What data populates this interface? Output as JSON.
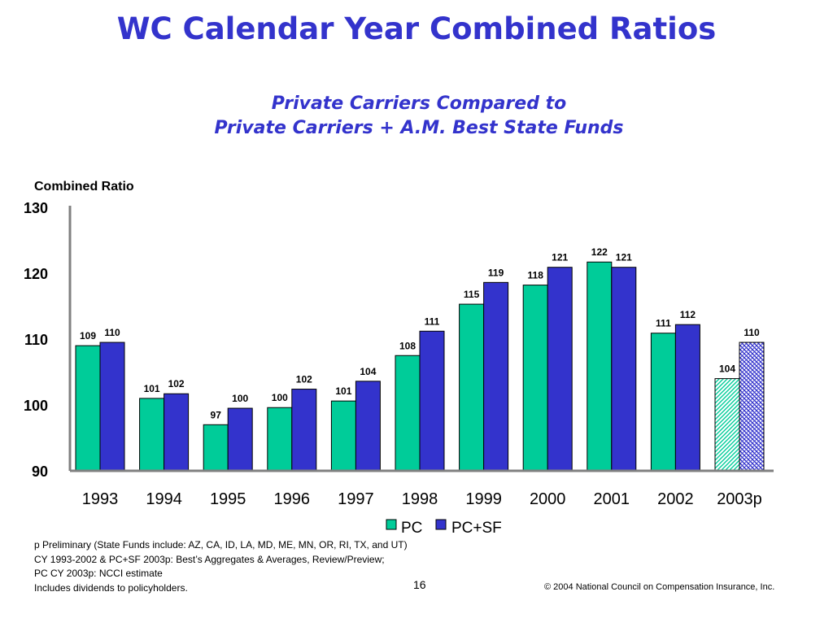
{
  "slide": {
    "title": "WC Calendar Year Combined Ratios",
    "subtitle_line1": "Private Carriers Compared to",
    "subtitle_line2": "Private Carriers + A.M. Best State Funds",
    "footnotes": [
      "p Preliminary (State Funds include: AZ, CA, ID, LA, MD, ME, MN, OR, RI, TX, and UT)",
      "CY 1993-2002 & PC+SF 2003p: Best’s Aggregates & Averages, Review/Preview;",
      "PC CY 2003p: NCCI estimate",
      "Includes dividends to policyholders."
    ],
    "page_number": "16",
    "copyright": "© 2004 National Council on Compensation Insurance, Inc."
  },
  "chart_data": {
    "type": "bar",
    "ylabel": "Combined Ratio",
    "ylim": [
      90,
      130
    ],
    "yticks": [
      90,
      100,
      110,
      120,
      130
    ],
    "categories": [
      "1993",
      "1994",
      "1995",
      "1996",
      "1997",
      "1998",
      "1999",
      "2000",
      "2001",
      "2002",
      "2003p"
    ],
    "series": [
      {
        "name": "PC",
        "color": "#00cc99",
        "values": [
          109,
          101,
          97,
          99.6,
          100.6,
          107.5,
          115.3,
          118.2,
          121.7,
          110.9,
          104
        ],
        "labels": [
          "109",
          "101",
          "97",
          "100",
          "101",
          "108",
          "115",
          "118",
          "122",
          "111",
          "104"
        ]
      },
      {
        "name": "PC+SF",
        "color": "#3333cc",
        "values": [
          109.5,
          101.7,
          99.5,
          102.4,
          103.6,
          111.2,
          118.6,
          120.9,
          120.9,
          112.2,
          109.5
        ],
        "labels": [
          "110",
          "102",
          "100",
          "102",
          "104",
          "111",
          "119",
          "121",
          "121",
          "112",
          "110"
        ]
      }
    ],
    "preliminary_category": "2003p",
    "grid": false,
    "legend_position": "bottom"
  }
}
